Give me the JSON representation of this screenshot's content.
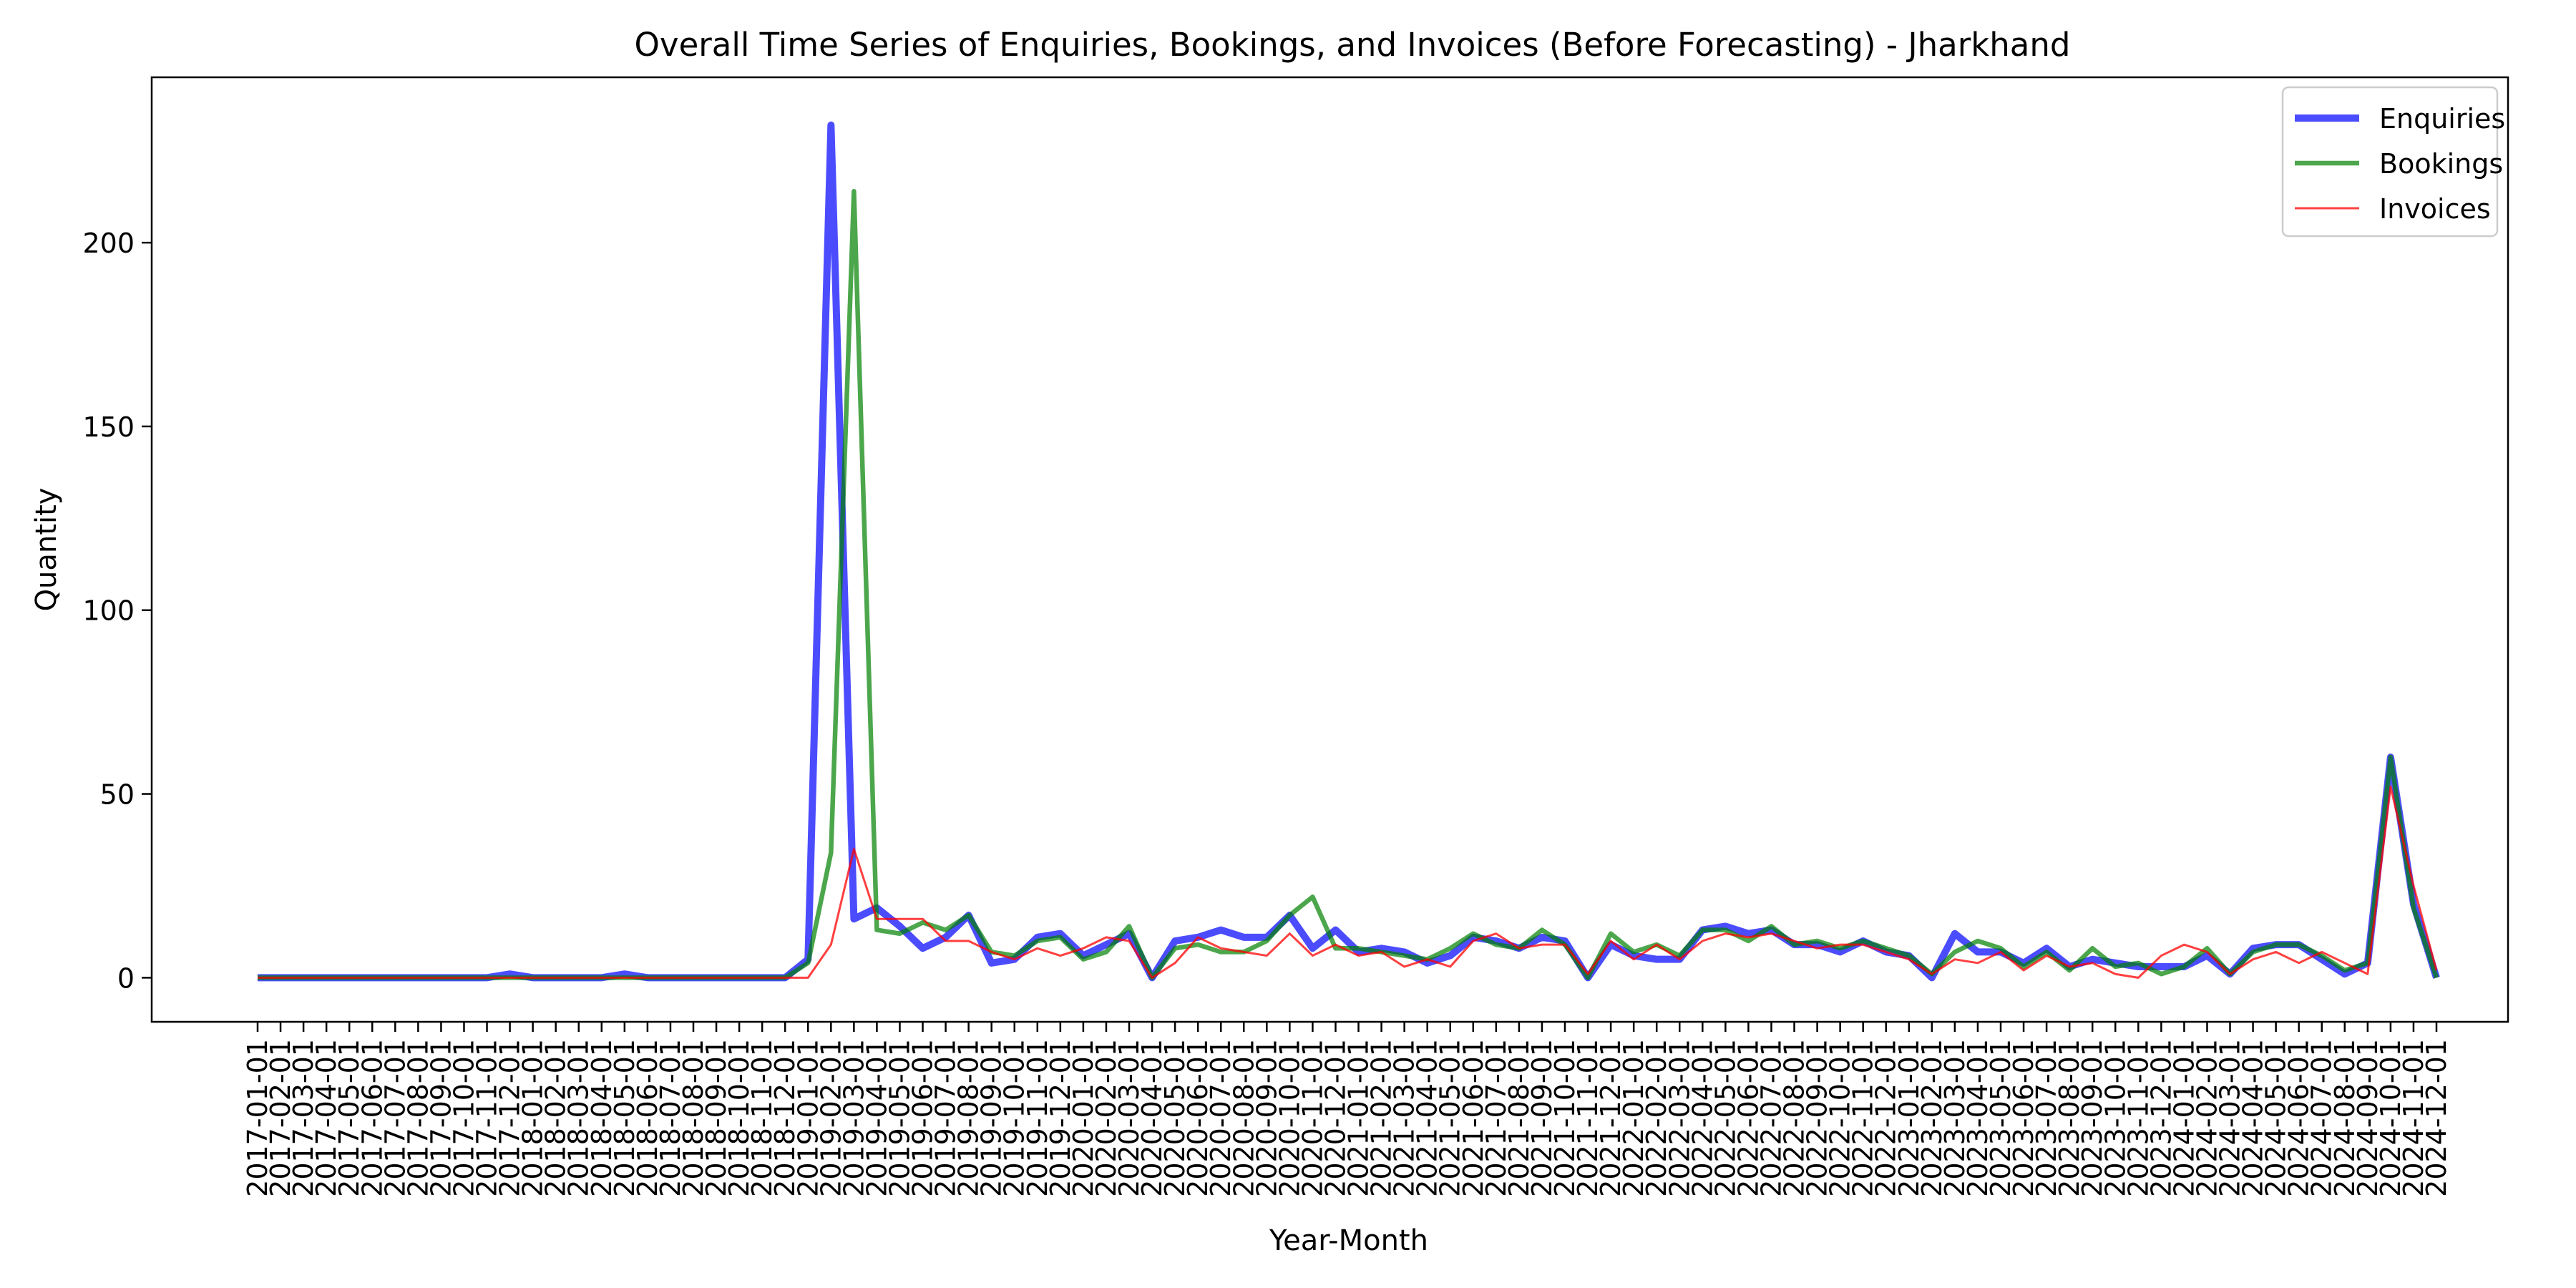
{
  "chart_data": {
    "type": "line",
    "title": "Overall Time Series of Enquiries, Bookings, and Invoices (Before Forecasting) - Jharkhand",
    "xlabel": "Year-Month",
    "ylabel": "Quantity",
    "ylim": [
      -12,
      245
    ],
    "yticks": [
      0,
      50,
      100,
      150,
      200
    ],
    "grid": false,
    "legend_position": "top-right",
    "x": [
      "2017-01-01",
      "2017-02-01",
      "2017-03-01",
      "2017-04-01",
      "2017-05-01",
      "2017-06-01",
      "2017-07-01",
      "2017-08-01",
      "2017-09-01",
      "2017-10-01",
      "2017-11-01",
      "2017-12-01",
      "2018-01-01",
      "2018-02-01",
      "2018-03-01",
      "2018-04-01",
      "2018-05-01",
      "2018-06-01",
      "2018-07-01",
      "2018-08-01",
      "2018-09-01",
      "2018-10-01",
      "2018-11-01",
      "2018-12-01",
      "2019-01-01",
      "2019-02-01",
      "2019-03-01",
      "2019-04-01",
      "2019-05-01",
      "2019-06-01",
      "2019-07-01",
      "2019-08-01",
      "2019-09-01",
      "2019-10-01",
      "2019-11-01",
      "2019-12-01",
      "2020-01-01",
      "2020-02-01",
      "2020-03-01",
      "2020-04-01",
      "2020-05-01",
      "2020-06-01",
      "2020-07-01",
      "2020-08-01",
      "2020-09-01",
      "2020-10-01",
      "2020-11-01",
      "2020-12-01",
      "2021-01-01",
      "2021-02-01",
      "2021-03-01",
      "2021-04-01",
      "2021-05-01",
      "2021-06-01",
      "2021-07-01",
      "2021-08-01",
      "2021-09-01",
      "2021-10-01",
      "2021-11-01",
      "2021-12-01",
      "2022-01-01",
      "2022-02-01",
      "2022-03-01",
      "2022-04-01",
      "2022-05-01",
      "2022-06-01",
      "2022-07-01",
      "2022-08-01",
      "2022-09-01",
      "2022-10-01",
      "2022-11-01",
      "2022-12-01",
      "2023-01-01",
      "2023-02-01",
      "2023-03-01",
      "2023-04-01",
      "2023-05-01",
      "2023-06-01",
      "2023-07-01",
      "2023-08-01",
      "2023-09-01",
      "2023-10-01",
      "2023-11-01",
      "2023-12-01",
      "2024-01-01",
      "2024-02-01",
      "2024-03-01",
      "2024-04-01",
      "2024-05-01",
      "2024-06-01",
      "2024-07-01",
      "2024-08-01",
      "2024-09-01",
      "2024-10-01",
      "2024-11-01",
      "2024-12-01"
    ],
    "xticklabels": [
      "2017-01-01",
      "2017-02-01",
      "2017-03-01",
      "2017-04-01",
      "2017-05-01",
      "2017-06-01",
      "2017-07-01",
      "2017-08-01",
      "2017-09-01",
      "2017-10-01",
      "2017-11-01",
      "2017-12-01",
      "2018-01-01",
      "2018-02-01",
      "2018-03-01",
      "2018-04-01",
      "2018-05-01",
      "2018-06-01",
      "2018-07-01",
      "2018-08-01",
      "2018-09-01",
      "2018-10-01",
      "2018-11-01",
      "2018-12-01",
      "2019-01-01",
      "2019-02-01",
      "2019-03-01",
      "2019-04-01",
      "2019-05-01",
      "2019-06-01",
      "2019-07-01",
      "2019-08-01",
      "2019-09-01",
      "2019-10-01",
      "2019-11-01",
      "2019-12-01",
      "2020-01-01",
      "2020-02-01",
      "2020-03-01",
      "2020-04-01",
      "2020-05-01",
      "2020-06-01",
      "2020-07-01",
      "2020-08-01",
      "2020-09-01",
      "2020-10-01",
      "2020-11-01",
      "2020-12-01",
      "2021-01-01",
      "2021-02-01",
      "2021-03-01",
      "2021-04-01",
      "2021-05-01",
      "2021-06-01",
      "2021-07-01",
      "2021-08-01",
      "2021-09-01",
      "2021-10-01",
      "2021-11-01",
      "2021-12-01",
      "2022-01-01",
      "2022-02-01",
      "2022-03-01",
      "2022-04-01",
      "2022-05-01",
      "2022-06-01",
      "2022-07-01",
      "2022-08-01",
      "2022-09-01",
      "2022-10-01",
      "2022-11-01",
      "2022-12-01",
      "2023-01-01",
      "2023-02-01",
      "2023-03-01",
      "2023-04-01",
      "2023-05-01",
      "2023-06-01",
      "2023-07-01",
      "2023-08-01",
      "2023-09-01",
      "2023-10-01",
      "2023-11-01",
      "2023-12-01",
      "2024-01-01",
      "2024-02-01",
      "2024-03-01",
      "2024-04-01",
      "2024-05-01",
      "2024-06-01",
      "2024-07-01",
      "2024-08-01",
      "2024-09-01",
      "2024-10-01",
      "2024-11-01",
      "2024-12-01"
    ],
    "series": [
      {
        "name": "Enquiries",
        "color": "#0000ff",
        "values": [
          0,
          0,
          0,
          0,
          0,
          0,
          0,
          0,
          0,
          0,
          0,
          1,
          0,
          0,
          0,
          0,
          1,
          0,
          0,
          0,
          0,
          0,
          0,
          0,
          5,
          232,
          16,
          19,
          14,
          8,
          11,
          17,
          4,
          5,
          11,
          12,
          6,
          9,
          12,
          0,
          10,
          11,
          13,
          11,
          11,
          17,
          8,
          13,
          7,
          8,
          7,
          4,
          6,
          11,
          10,
          8,
          11,
          10,
          0,
          9,
          6,
          5,
          5,
          13,
          14,
          12,
          13,
          9,
          9,
          7,
          10,
          7,
          6,
          0,
          12,
          7,
          7,
          4,
          8,
          3,
          5,
          4,
          3,
          3,
          3,
          6,
          1,
          8,
          9,
          9,
          5,
          1,
          4,
          60,
          20,
          0
        ]
      },
      {
        "name": "Bookings",
        "color": "#008000",
        "values": [
          0,
          0,
          0,
          0,
          0,
          0,
          0,
          0,
          0,
          0,
          0,
          0,
          0,
          0,
          0,
          0,
          0,
          0,
          0,
          0,
          0,
          0,
          0,
          0,
          4,
          34,
          214,
          13,
          12,
          15,
          13,
          17,
          7,
          6,
          10,
          11,
          5,
          7,
          14,
          0,
          8,
          9,
          7,
          7,
          10,
          17,
          22,
          8,
          8,
          7,
          6,
          5,
          8,
          12,
          9,
          8,
          13,
          9,
          0,
          12,
          7,
          9,
          6,
          13,
          13,
          10,
          14,
          9,
          10,
          8,
          10,
          8,
          6,
          1,
          7,
          10,
          8,
          3,
          7,
          2,
          8,
          3,
          4,
          1,
          3,
          8,
          1,
          7,
          9,
          9,
          6,
          2,
          4,
          60,
          19,
          0
        ]
      },
      {
        "name": "Invoices",
        "color": "#ff0000",
        "values": [
          0,
          0,
          0,
          0,
          0,
          0,
          0,
          0,
          0,
          0,
          0,
          0,
          0,
          0,
          0,
          0,
          0,
          0,
          0,
          0,
          0,
          0,
          0,
          0,
          0,
          9,
          35,
          16,
          16,
          16,
          10,
          10,
          7,
          5,
          8,
          6,
          8,
          11,
          10,
          0,
          4,
          11,
          8,
          7,
          6,
          12,
          6,
          9,
          6,
          7,
          3,
          5,
          3,
          10,
          12,
          8,
          9,
          9,
          1,
          10,
          5,
          9,
          5,
          10,
          12,
          11,
          12,
          10,
          8,
          9,
          9,
          7,
          5,
          1,
          5,
          4,
          7,
          2,
          6,
          3,
          4,
          1,
          0,
          6,
          9,
          7,
          1,
          5,
          7,
          4,
          7,
          4,
          1,
          52,
          25,
          2
        ]
      }
    ]
  }
}
